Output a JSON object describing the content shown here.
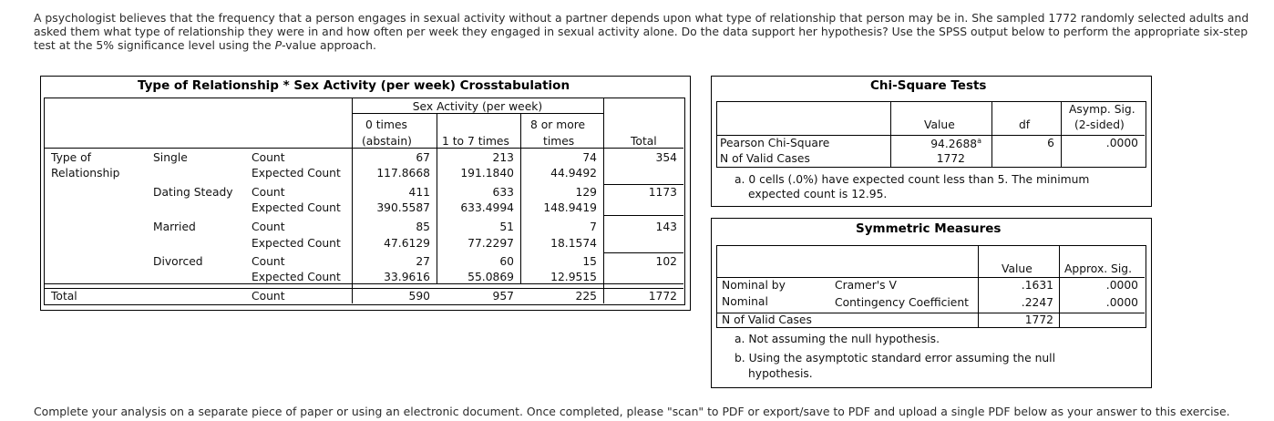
{
  "intro": {
    "part1": "A psychologist believes that the frequency that a person engages in sexual activity without a partner depends upon what type of relationship that person may be in.  She sampled 1772 randomly selected adults and asked them what type of relationship they were in and how often per week they engaged in sexual activity alone.  Do the data support her hypothesis?  Use the SPSS output below to perform the appropriate six-step test at the 5% significance level using the ",
    "pvalue": "P",
    "part2": "-value approach."
  },
  "crosstab": {
    "title": "Type of Relationship * Sex Activity (per week) Crosstabulation",
    "spanner": "Sex Activity (per week)",
    "col_headers": [
      [
        "0 times",
        "(abstain)"
      ],
      [
        "1 to 7 times"
      ],
      [
        "8 or more",
        "times"
      ]
    ],
    "total_label": "Total",
    "row_var": [
      "Type of",
      "Relationship"
    ],
    "rows": [
      {
        "group": "Single",
        "count_label": "Count",
        "expected_label": "Expected Count",
        "counts": [
          "67",
          "213",
          "74"
        ],
        "total": "354",
        "expected": [
          "117.8668",
          "191.1840",
          "44.9492"
        ]
      },
      {
        "group": "Dating Steady",
        "count_label": "Count",
        "expected_label": "Expected Count",
        "counts": [
          "411",
          "633",
          "129"
        ],
        "total": "1173",
        "expected": [
          "390.5587",
          "633.4994",
          "148.9419"
        ]
      },
      {
        "group": "Married",
        "count_label": "Count",
        "expected_label": "Expected Count",
        "counts": [
          "85",
          "51",
          "7"
        ],
        "total": "143",
        "expected": [
          "47.6129",
          "77.2297",
          "18.1574"
        ]
      },
      {
        "group": "Divorced",
        "count_label": "Count",
        "expected_label": "Expected Count",
        "counts": [
          "27",
          "60",
          "15"
        ],
        "total": "102",
        "expected": [
          "33.9616",
          "55.0869",
          "12.9515"
        ]
      }
    ],
    "total_row": {
      "label": "Total",
      "count_label": "Count",
      "counts": [
        "590",
        "957",
        "225"
      ],
      "total": "1772"
    }
  },
  "chisq": {
    "title": "Chi-Square Tests",
    "headers": {
      "value": "Value",
      "df": "df",
      "sig1": "Asymp. Sig.",
      "sig2": "(2-sided)"
    },
    "pearson": {
      "label": "Pearson Chi-Square",
      "value": "94.2688",
      "sup": "a",
      "df": "6",
      "sig": ".0000"
    },
    "nvalid": {
      "label": "N of Valid Cases",
      "value": "1772"
    },
    "note1": "a. 0 cells (.0%) have expected count less than 5. The minimum",
    "note2": "expected count is 12.95."
  },
  "symm": {
    "title": "Symmetric Measures",
    "headers": {
      "value": "Value",
      "sig": "Approx. Sig."
    },
    "nominal1": "Nominal by",
    "nominal2": "Nominal",
    "cramer": {
      "label": "Cramer's V",
      "value": ".1631",
      "sig": ".0000"
    },
    "contingency": {
      "label": "Contingency Coefficient",
      "value": ".2247",
      "sig": ".0000"
    },
    "nvalid": {
      "label": "N of Valid Cases",
      "value": "1772"
    },
    "note_a": "a. Not assuming the null hypothesis.",
    "note_b1": "b. Using the asymptotic standard error assuming the null",
    "note_b2": "hypothesis."
  },
  "footer": "Complete your analysis on a separate piece of paper or using an electronic document. Once completed, please \"scan\" to PDF or export/save to PDF and upload a single PDF below as your answer to this exercise."
}
